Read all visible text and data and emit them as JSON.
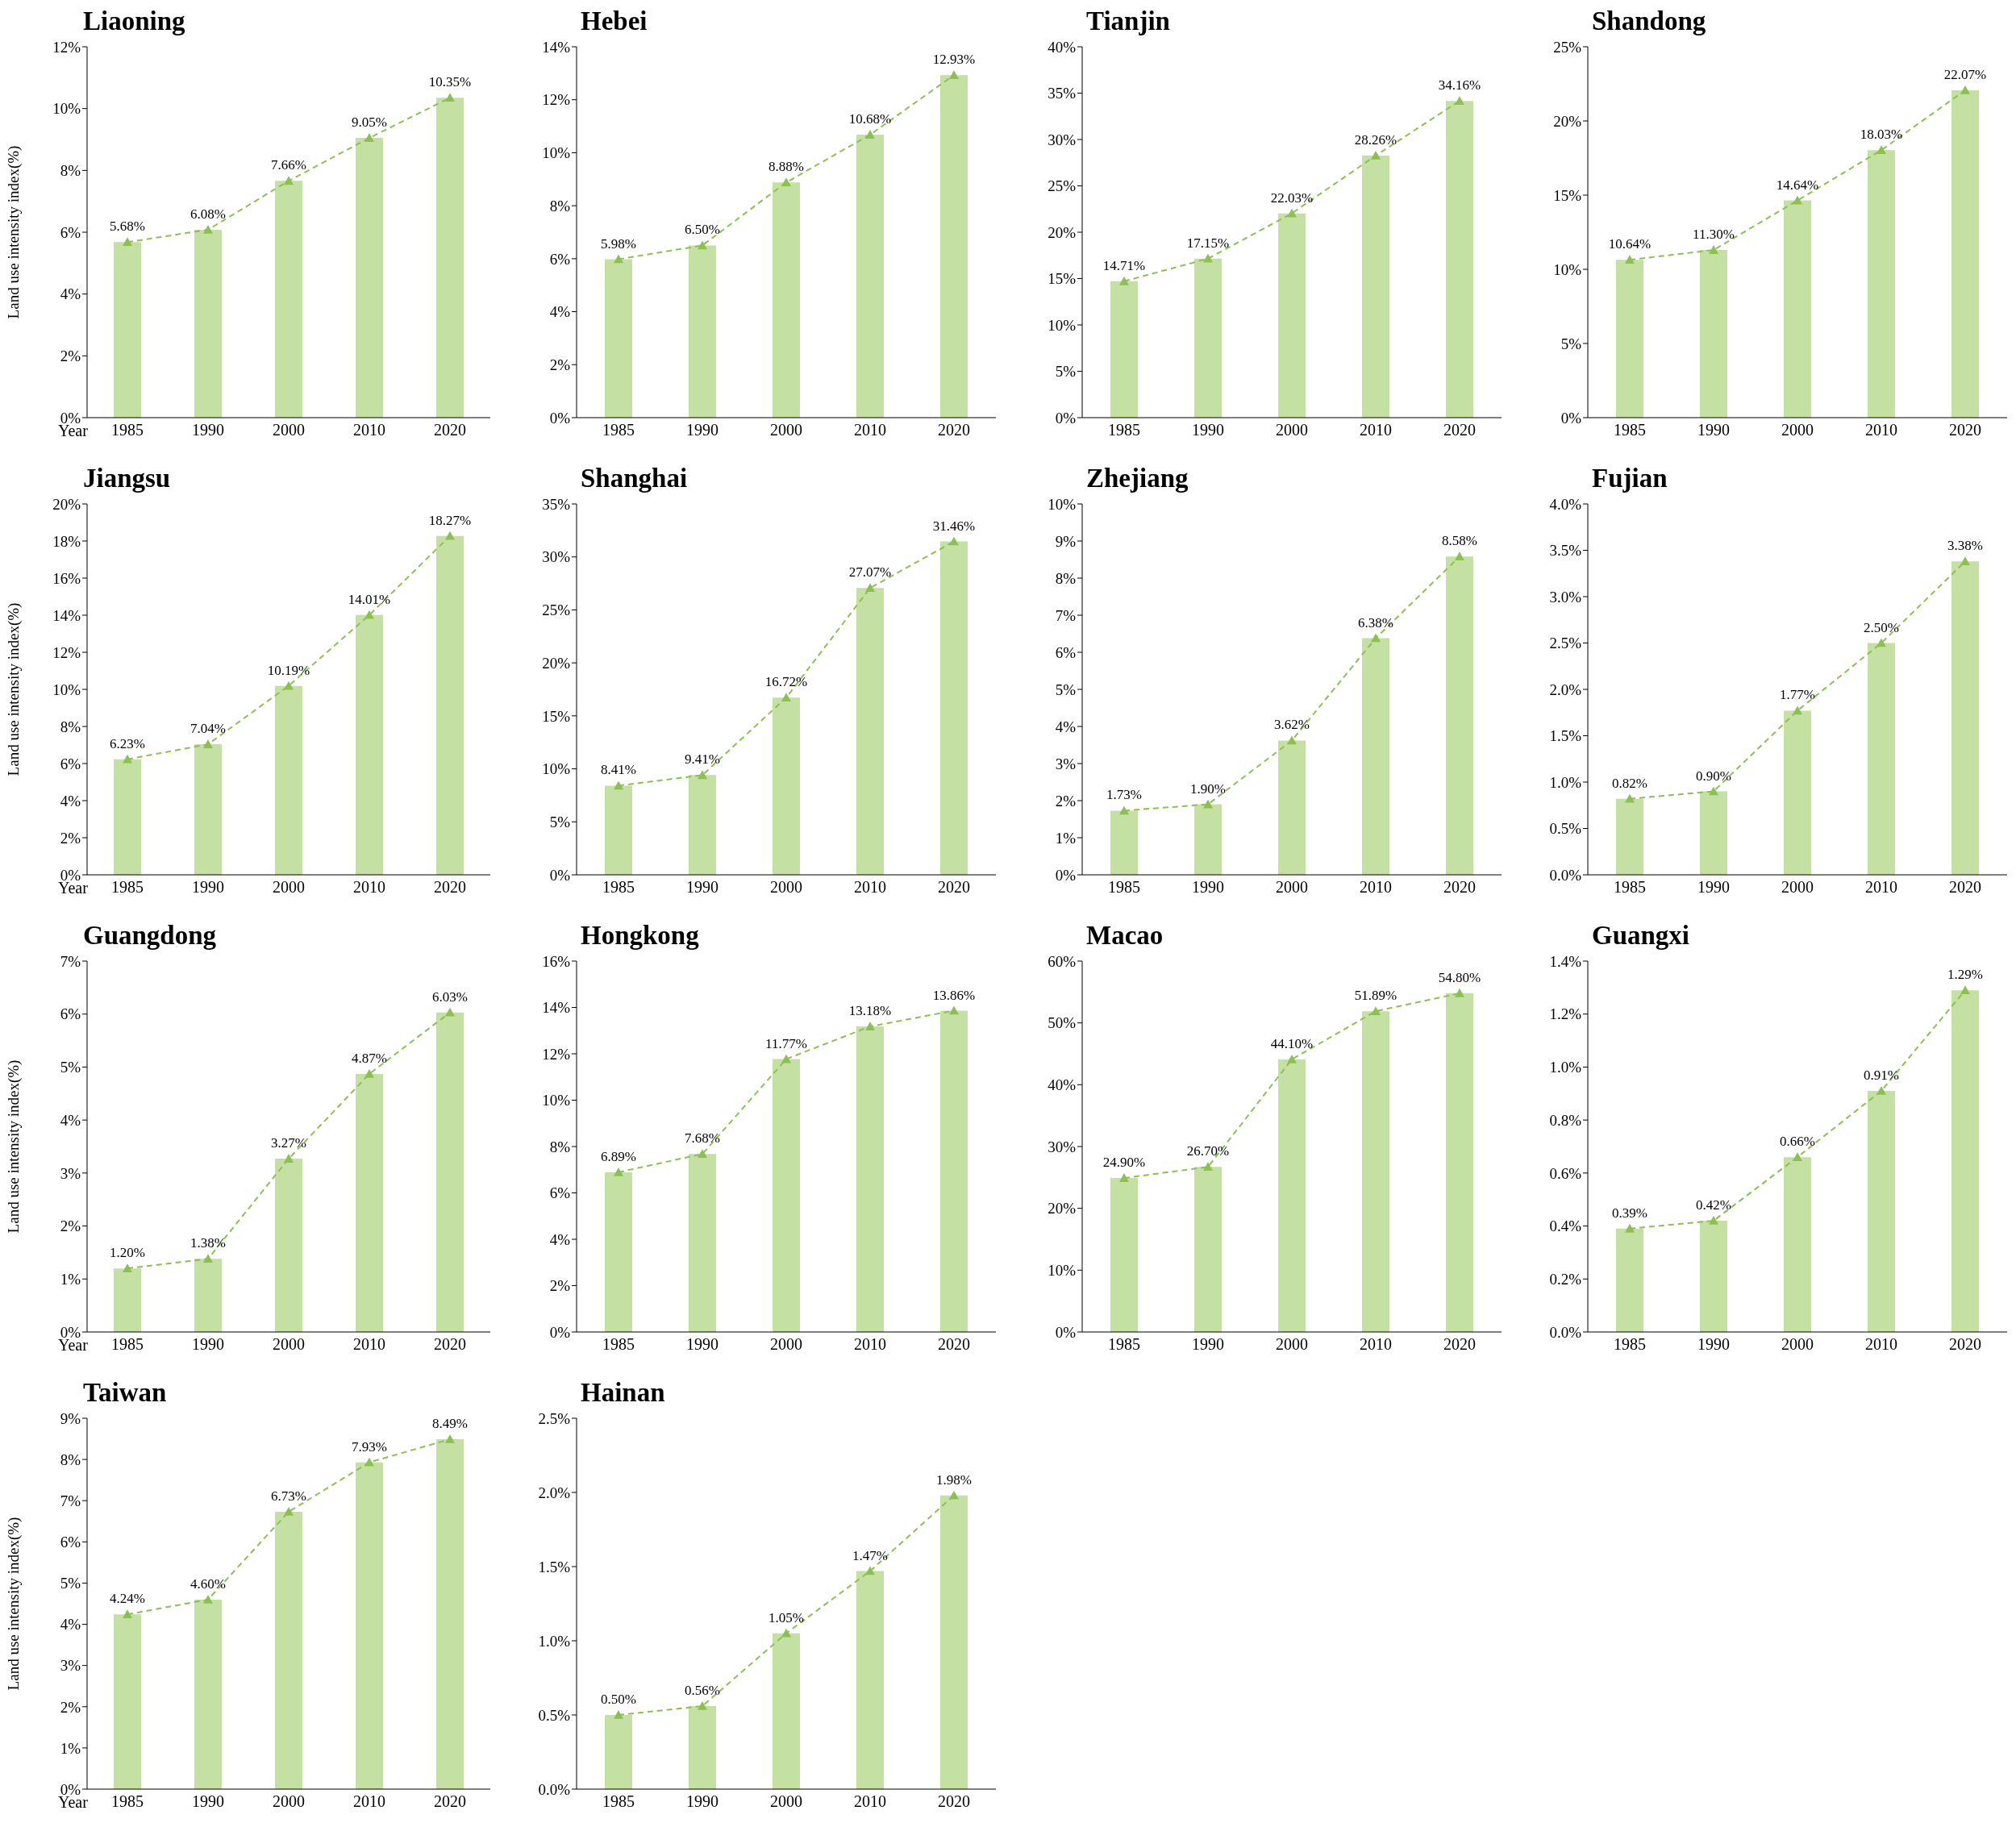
{
  "chart_data": [
    {
      "type": "bar",
      "title": "Liaoning",
      "ylabel": "Land use intensity index(%)",
      "xlabel": "Year",
      "categories": [
        "1985",
        "1990",
        "2000",
        "2010",
        "2020"
      ],
      "ylim": [
        0,
        12
      ],
      "yticks": [
        {
          "value": 0,
          "label": "0%"
        },
        {
          "value": 2,
          "label": "2%"
        },
        {
          "value": 4,
          "label": "4%"
        },
        {
          "value": 6,
          "label": "6%"
        },
        {
          "value": 8,
          "label": "8%"
        },
        {
          "value": 10,
          "label": "10%"
        },
        {
          "value": 12,
          "label": "12%"
        }
      ],
      "marker": "triangle",
      "line_style": "dashed",
      "series": [
        {
          "color": "#c5e0a3",
          "values": [
            5.68,
            6.08,
            7.66,
            9.05,
            10.35
          ]
        },
        {
          "type": "line",
          "color": "#8cc152",
          "values": [
            5.68,
            6.08,
            7.66,
            9.05,
            10.35
          ],
          "value_labels": [
            "5.68%",
            "6.08%",
            "7.66%",
            "9.05%",
            "10.35%"
          ]
        }
      ]
    },
    {
      "type": "bar",
      "title": "Hebei",
      "categories": [
        "1985",
        "1990",
        "2000",
        "2010",
        "2020"
      ],
      "ylim": [
        0,
        14
      ],
      "yticks": [
        {
          "value": 0,
          "label": "0%"
        },
        {
          "value": 2,
          "label": "2%"
        },
        {
          "value": 4,
          "label": "4%"
        },
        {
          "value": 6,
          "label": "6%"
        },
        {
          "value": 8,
          "label": "8%"
        },
        {
          "value": 10,
          "label": "10%"
        },
        {
          "value": 12,
          "label": "12%"
        },
        {
          "value": 14,
          "label": "14%"
        }
      ],
      "marker": "triangle",
      "line_style": "dashed",
      "series": [
        {
          "color": "#c5e0a3",
          "values": [
            5.98,
            6.5,
            8.88,
            10.68,
            12.93
          ]
        },
        {
          "type": "line",
          "color": "#8cc152",
          "values": [
            5.98,
            6.5,
            8.88,
            10.68,
            12.93
          ],
          "value_labels": [
            "5.98%",
            "6.50%",
            "8.88%",
            "10.68%",
            "12.93%"
          ]
        }
      ]
    },
    {
      "type": "bar",
      "title": "Tianjin",
      "categories": [
        "1985",
        "1990",
        "2000",
        "2010",
        "2020"
      ],
      "ylim": [
        0,
        40
      ],
      "yticks": [
        {
          "value": 0,
          "label": "0%"
        },
        {
          "value": 5,
          "label": "5%"
        },
        {
          "value": 10,
          "label": "10%"
        },
        {
          "value": 15,
          "label": "15%"
        },
        {
          "value": 20,
          "label": "20%"
        },
        {
          "value": 25,
          "label": "25%"
        },
        {
          "value": 30,
          "label": "30%"
        },
        {
          "value": 35,
          "label": "35%"
        },
        {
          "value": 40,
          "label": "40%"
        }
      ],
      "marker": "triangle",
      "line_style": "dashed",
      "series": [
        {
          "color": "#c5e0a3",
          "values": [
            14.71,
            17.15,
            22.03,
            28.26,
            34.16
          ]
        },
        {
          "type": "line",
          "color": "#8cc152",
          "values": [
            14.71,
            17.15,
            22.03,
            28.26,
            34.16
          ],
          "value_labels": [
            "14.71%",
            "17.15%",
            "22.03%",
            "28.26%",
            "34.16%"
          ]
        }
      ]
    },
    {
      "type": "bar",
      "title": "Shandong",
      "categories": [
        "1985",
        "1990",
        "2000",
        "2010",
        "2020"
      ],
      "ylim": [
        0,
        25
      ],
      "yticks": [
        {
          "value": 0,
          "label": "0%"
        },
        {
          "value": 5,
          "label": "5%"
        },
        {
          "value": 10,
          "label": "10%"
        },
        {
          "value": 15,
          "label": "15%"
        },
        {
          "value": 20,
          "label": "20%"
        },
        {
          "value": 25,
          "label": "25%"
        }
      ],
      "marker": "triangle",
      "line_style": "dashed",
      "series": [
        {
          "color": "#c5e0a3",
          "values": [
            10.64,
            11.3,
            14.64,
            18.03,
            22.07
          ]
        },
        {
          "type": "line",
          "color": "#8cc152",
          "values": [
            10.64,
            11.3,
            14.64,
            18.03,
            22.07
          ],
          "value_labels": [
            "10.64%",
            "11.30%",
            "14.64%",
            "18.03%",
            "22.07%"
          ]
        }
      ]
    },
    {
      "type": "bar",
      "title": "Jiangsu",
      "ylabel": "Land use intensity index(%)",
      "xlabel": "Year",
      "categories": [
        "1985",
        "1990",
        "2000",
        "2010",
        "2020"
      ],
      "ylim": [
        0,
        20
      ],
      "yticks": [
        {
          "value": 0,
          "label": "0%"
        },
        {
          "value": 2,
          "label": "2%"
        },
        {
          "value": 4,
          "label": "4%"
        },
        {
          "value": 6,
          "label": "6%"
        },
        {
          "value": 8,
          "label": "8%"
        },
        {
          "value": 10,
          "label": "10%"
        },
        {
          "value": 12,
          "label": "12%"
        },
        {
          "value": 14,
          "label": "14%"
        },
        {
          "value": 16,
          "label": "16%"
        },
        {
          "value": 18,
          "label": "18%"
        },
        {
          "value": 20,
          "label": "20%"
        }
      ],
      "marker": "triangle",
      "line_style": "dashed",
      "series": [
        {
          "color": "#c5e0a3",
          "values": [
            6.23,
            7.04,
            10.19,
            14.01,
            18.27
          ]
        },
        {
          "type": "line",
          "color": "#8cc152",
          "values": [
            6.23,
            7.04,
            10.19,
            14.01,
            18.27
          ],
          "value_labels": [
            "6.23%",
            "7.04%",
            "10.19%",
            "14.01%",
            "18.27%"
          ]
        }
      ]
    },
    {
      "type": "bar",
      "title": "Shanghai",
      "categories": [
        "1985",
        "1990",
        "2000",
        "2010",
        "2020"
      ],
      "ylim": [
        0,
        35
      ],
      "yticks": [
        {
          "value": 0,
          "label": "0%"
        },
        {
          "value": 5,
          "label": "5%"
        },
        {
          "value": 10,
          "label": "10%"
        },
        {
          "value": 15,
          "label": "15%"
        },
        {
          "value": 20,
          "label": "20%"
        },
        {
          "value": 25,
          "label": "25%"
        },
        {
          "value": 30,
          "label": "30%"
        },
        {
          "value": 35,
          "label": "35%"
        }
      ],
      "marker": "triangle",
      "line_style": "dashed",
      "series": [
        {
          "color": "#c5e0a3",
          "values": [
            8.41,
            9.41,
            16.72,
            27.07,
            31.46
          ]
        },
        {
          "type": "line",
          "color": "#8cc152",
          "values": [
            8.41,
            9.41,
            16.72,
            27.07,
            31.46
          ],
          "value_labels": [
            "8.41%",
            "9.41%",
            "16.72%",
            "27.07%",
            "31.46%"
          ]
        }
      ]
    },
    {
      "type": "bar",
      "title": "Zhejiang",
      "categories": [
        "1985",
        "1990",
        "2000",
        "2010",
        "2020"
      ],
      "ylim": [
        0,
        10
      ],
      "yticks": [
        {
          "value": 0,
          "label": "0%"
        },
        {
          "value": 1,
          "label": "1%"
        },
        {
          "value": 2,
          "label": "2%"
        },
        {
          "value": 3,
          "label": "3%"
        },
        {
          "value": 4,
          "label": "4%"
        },
        {
          "value": 5,
          "label": "5%"
        },
        {
          "value": 6,
          "label": "6%"
        },
        {
          "value": 7,
          "label": "7%"
        },
        {
          "value": 8,
          "label": "8%"
        },
        {
          "value": 9,
          "label": "9%"
        },
        {
          "value": 10,
          "label": "10%"
        }
      ],
      "marker": "triangle",
      "line_style": "dashed",
      "series": [
        {
          "color": "#c5e0a3",
          "values": [
            1.73,
            1.9,
            3.62,
            6.38,
            8.58
          ]
        },
        {
          "type": "line",
          "color": "#8cc152",
          "values": [
            1.73,
            1.9,
            3.62,
            6.38,
            8.58
          ],
          "value_labels": [
            "1.73%",
            "1.90%",
            "3.62%",
            "6.38%",
            "8.58%"
          ]
        }
      ]
    },
    {
      "type": "bar",
      "title": "Fujian",
      "categories": [
        "1985",
        "1990",
        "2000",
        "2010",
        "2020"
      ],
      "ylim": [
        0,
        4
      ],
      "yticks": [
        {
          "value": 0,
          "label": "0.0%"
        },
        {
          "value": 0.5,
          "label": "0.5%"
        },
        {
          "value": 1,
          "label": "1.0%"
        },
        {
          "value": 1.5,
          "label": "1.5%"
        },
        {
          "value": 2,
          "label": "2.0%"
        },
        {
          "value": 2.5,
          "label": "2.5%"
        },
        {
          "value": 3,
          "label": "3.0%"
        },
        {
          "value": 3.5,
          "label": "3.5%"
        },
        {
          "value": 4,
          "label": "4.0%"
        }
      ],
      "marker": "triangle",
      "line_style": "dashed",
      "series": [
        {
          "color": "#c5e0a3",
          "values": [
            0.82,
            0.9,
            1.77,
            2.5,
            3.38
          ]
        },
        {
          "type": "line",
          "color": "#8cc152",
          "values": [
            0.82,
            0.9,
            1.77,
            2.5,
            3.38
          ],
          "value_labels": [
            "0.82%",
            "0.90%",
            "1.77%",
            "2.50%",
            "3.38%"
          ]
        }
      ]
    },
    {
      "type": "bar",
      "title": "Guangdong",
      "ylabel": "Land use intensity index(%)",
      "xlabel": "Year",
      "categories": [
        "1985",
        "1990",
        "2000",
        "2010",
        "2020"
      ],
      "ylim": [
        0,
        7
      ],
      "yticks": [
        {
          "value": 0,
          "label": "0%"
        },
        {
          "value": 1,
          "label": "1%"
        },
        {
          "value": 2,
          "label": "2%"
        },
        {
          "value": 3,
          "label": "3%"
        },
        {
          "value": 4,
          "label": "4%"
        },
        {
          "value": 5,
          "label": "5%"
        },
        {
          "value": 6,
          "label": "6%"
        },
        {
          "value": 7,
          "label": "7%"
        }
      ],
      "marker": "triangle",
      "line_style": "dashed",
      "series": [
        {
          "color": "#c5e0a3",
          "values": [
            1.2,
            1.38,
            3.27,
            4.87,
            6.03
          ]
        },
        {
          "type": "line",
          "color": "#8cc152",
          "values": [
            1.2,
            1.38,
            3.27,
            4.87,
            6.03
          ],
          "value_labels": [
            "1.20%",
            "1.38%",
            "3.27%",
            "4.87%",
            "6.03%"
          ]
        }
      ]
    },
    {
      "type": "bar",
      "title": "Hongkong",
      "categories": [
        "1985",
        "1990",
        "2000",
        "2010",
        "2020"
      ],
      "ylim": [
        0,
        16
      ],
      "yticks": [
        {
          "value": 0,
          "label": "0%"
        },
        {
          "value": 2,
          "label": "2%"
        },
        {
          "value": 4,
          "label": "4%"
        },
        {
          "value": 6,
          "label": "6%"
        },
        {
          "value": 8,
          "label": "8%"
        },
        {
          "value": 10,
          "label": "10%"
        },
        {
          "value": 12,
          "label": "12%"
        },
        {
          "value": 14,
          "label": "14%"
        },
        {
          "value": 16,
          "label": "16%"
        }
      ],
      "marker": "triangle",
      "line_style": "dashed",
      "series": [
        {
          "color": "#c5e0a3",
          "values": [
            6.89,
            7.68,
            11.77,
            13.18,
            13.86
          ]
        },
        {
          "type": "line",
          "color": "#8cc152",
          "values": [
            6.89,
            7.68,
            11.77,
            13.18,
            13.86
          ],
          "value_labels": [
            "6.89%",
            "7.68%",
            "11.77%",
            "13.18%",
            "13.86%"
          ]
        }
      ]
    },
    {
      "type": "bar",
      "title": "Macao",
      "categories": [
        "1985",
        "1990",
        "2000",
        "2010",
        "2020"
      ],
      "ylim": [
        0,
        60
      ],
      "yticks": [
        {
          "value": 0,
          "label": "0%"
        },
        {
          "value": 10,
          "label": "10%"
        },
        {
          "value": 20,
          "label": "20%"
        },
        {
          "value": 30,
          "label": "30%"
        },
        {
          "value": 40,
          "label": "40%"
        },
        {
          "value": 50,
          "label": "50%"
        },
        {
          "value": 60,
          "label": "60%"
        }
      ],
      "marker": "triangle",
      "line_style": "dashed",
      "series": [
        {
          "color": "#c5e0a3",
          "values": [
            24.9,
            26.7,
            44.1,
            51.89,
            54.8
          ]
        },
        {
          "type": "line",
          "color": "#8cc152",
          "values": [
            24.9,
            26.7,
            44.1,
            51.89,
            54.8
          ],
          "value_labels": [
            "24.90%",
            "26.70%",
            "44.10%",
            "51.89%",
            "54.80%"
          ]
        }
      ]
    },
    {
      "type": "bar",
      "title": "Guangxi",
      "categories": [
        "1985",
        "1990",
        "2000",
        "2010",
        "2020"
      ],
      "ylim": [
        0,
        1.4
      ],
      "yticks": [
        {
          "value": 0,
          "label": "0.0%"
        },
        {
          "value": 0.2,
          "label": "0.2%"
        },
        {
          "value": 0.4,
          "label": "0.4%"
        },
        {
          "value": 0.6,
          "label": "0.6%"
        },
        {
          "value": 0.8,
          "label": "0.8%"
        },
        {
          "value": 1,
          "label": "1.0%"
        },
        {
          "value": 1.2,
          "label": "1.2%"
        },
        {
          "value": 1.4,
          "label": "1.4%"
        }
      ],
      "marker": "triangle",
      "line_style": "dashed",
      "series": [
        {
          "color": "#c5e0a3",
          "values": [
            0.39,
            0.42,
            0.66,
            0.91,
            1.29
          ]
        },
        {
          "type": "line",
          "color": "#8cc152",
          "values": [
            0.39,
            0.42,
            0.66,
            0.91,
            1.29
          ],
          "value_labels": [
            "0.39%",
            "0.42%",
            "0.66%",
            "0.91%",
            "1.29%"
          ]
        }
      ]
    },
    {
      "type": "bar",
      "title": "Taiwan",
      "ylabel": "Land use intensity index(%)",
      "xlabel": "Year",
      "categories": [
        "1985",
        "1990",
        "2000",
        "2010",
        "2020"
      ],
      "ylim": [
        0,
        9
      ],
      "yticks": [
        {
          "value": 0,
          "label": "0%"
        },
        {
          "value": 1,
          "label": "1%"
        },
        {
          "value": 2,
          "label": "2%"
        },
        {
          "value": 3,
          "label": "3%"
        },
        {
          "value": 4,
          "label": "4%"
        },
        {
          "value": 5,
          "label": "5%"
        },
        {
          "value": 6,
          "label": "6%"
        },
        {
          "value": 7,
          "label": "7%"
        },
        {
          "value": 8,
          "label": "8%"
        },
        {
          "value": 9,
          "label": "9%"
        }
      ],
      "marker": "triangle",
      "line_style": "dashed",
      "series": [
        {
          "color": "#c5e0a3",
          "values": [
            4.24,
            4.6,
            6.73,
            7.93,
            8.49
          ]
        },
        {
          "type": "line",
          "color": "#8cc152",
          "values": [
            4.24,
            4.6,
            6.73,
            7.93,
            8.49
          ],
          "value_labels": [
            "4.24%",
            "4.60%",
            "6.73%",
            "7.93%",
            "8.49%"
          ]
        }
      ]
    },
    {
      "type": "bar",
      "title": "Hainan",
      "categories": [
        "1985",
        "1990",
        "2000",
        "2010",
        "2020"
      ],
      "ylim": [
        0,
        2.5
      ],
      "yticks": [
        {
          "value": 0,
          "label": "0.0%"
        },
        {
          "value": 0.5,
          "label": "0.5%"
        },
        {
          "value": 1,
          "label": "1.0%"
        },
        {
          "value": 1.5,
          "label": "1.5%"
        },
        {
          "value": 2,
          "label": "2.0%"
        },
        {
          "value": 2.5,
          "label": "2.5%"
        }
      ],
      "marker": "triangle",
      "line_style": "dashed",
      "series": [
        {
          "color": "#c5e0a3",
          "values": [
            0.5,
            0.56,
            1.05,
            1.47,
            1.98
          ]
        },
        {
          "type": "line",
          "color": "#8cc152",
          "values": [
            0.5,
            0.56,
            1.05,
            1.47,
            1.98
          ],
          "value_labels": [
            "0.50%",
            "0.56%",
            "1.05%",
            "1.47%",
            "1.98%"
          ]
        }
      ]
    }
  ]
}
